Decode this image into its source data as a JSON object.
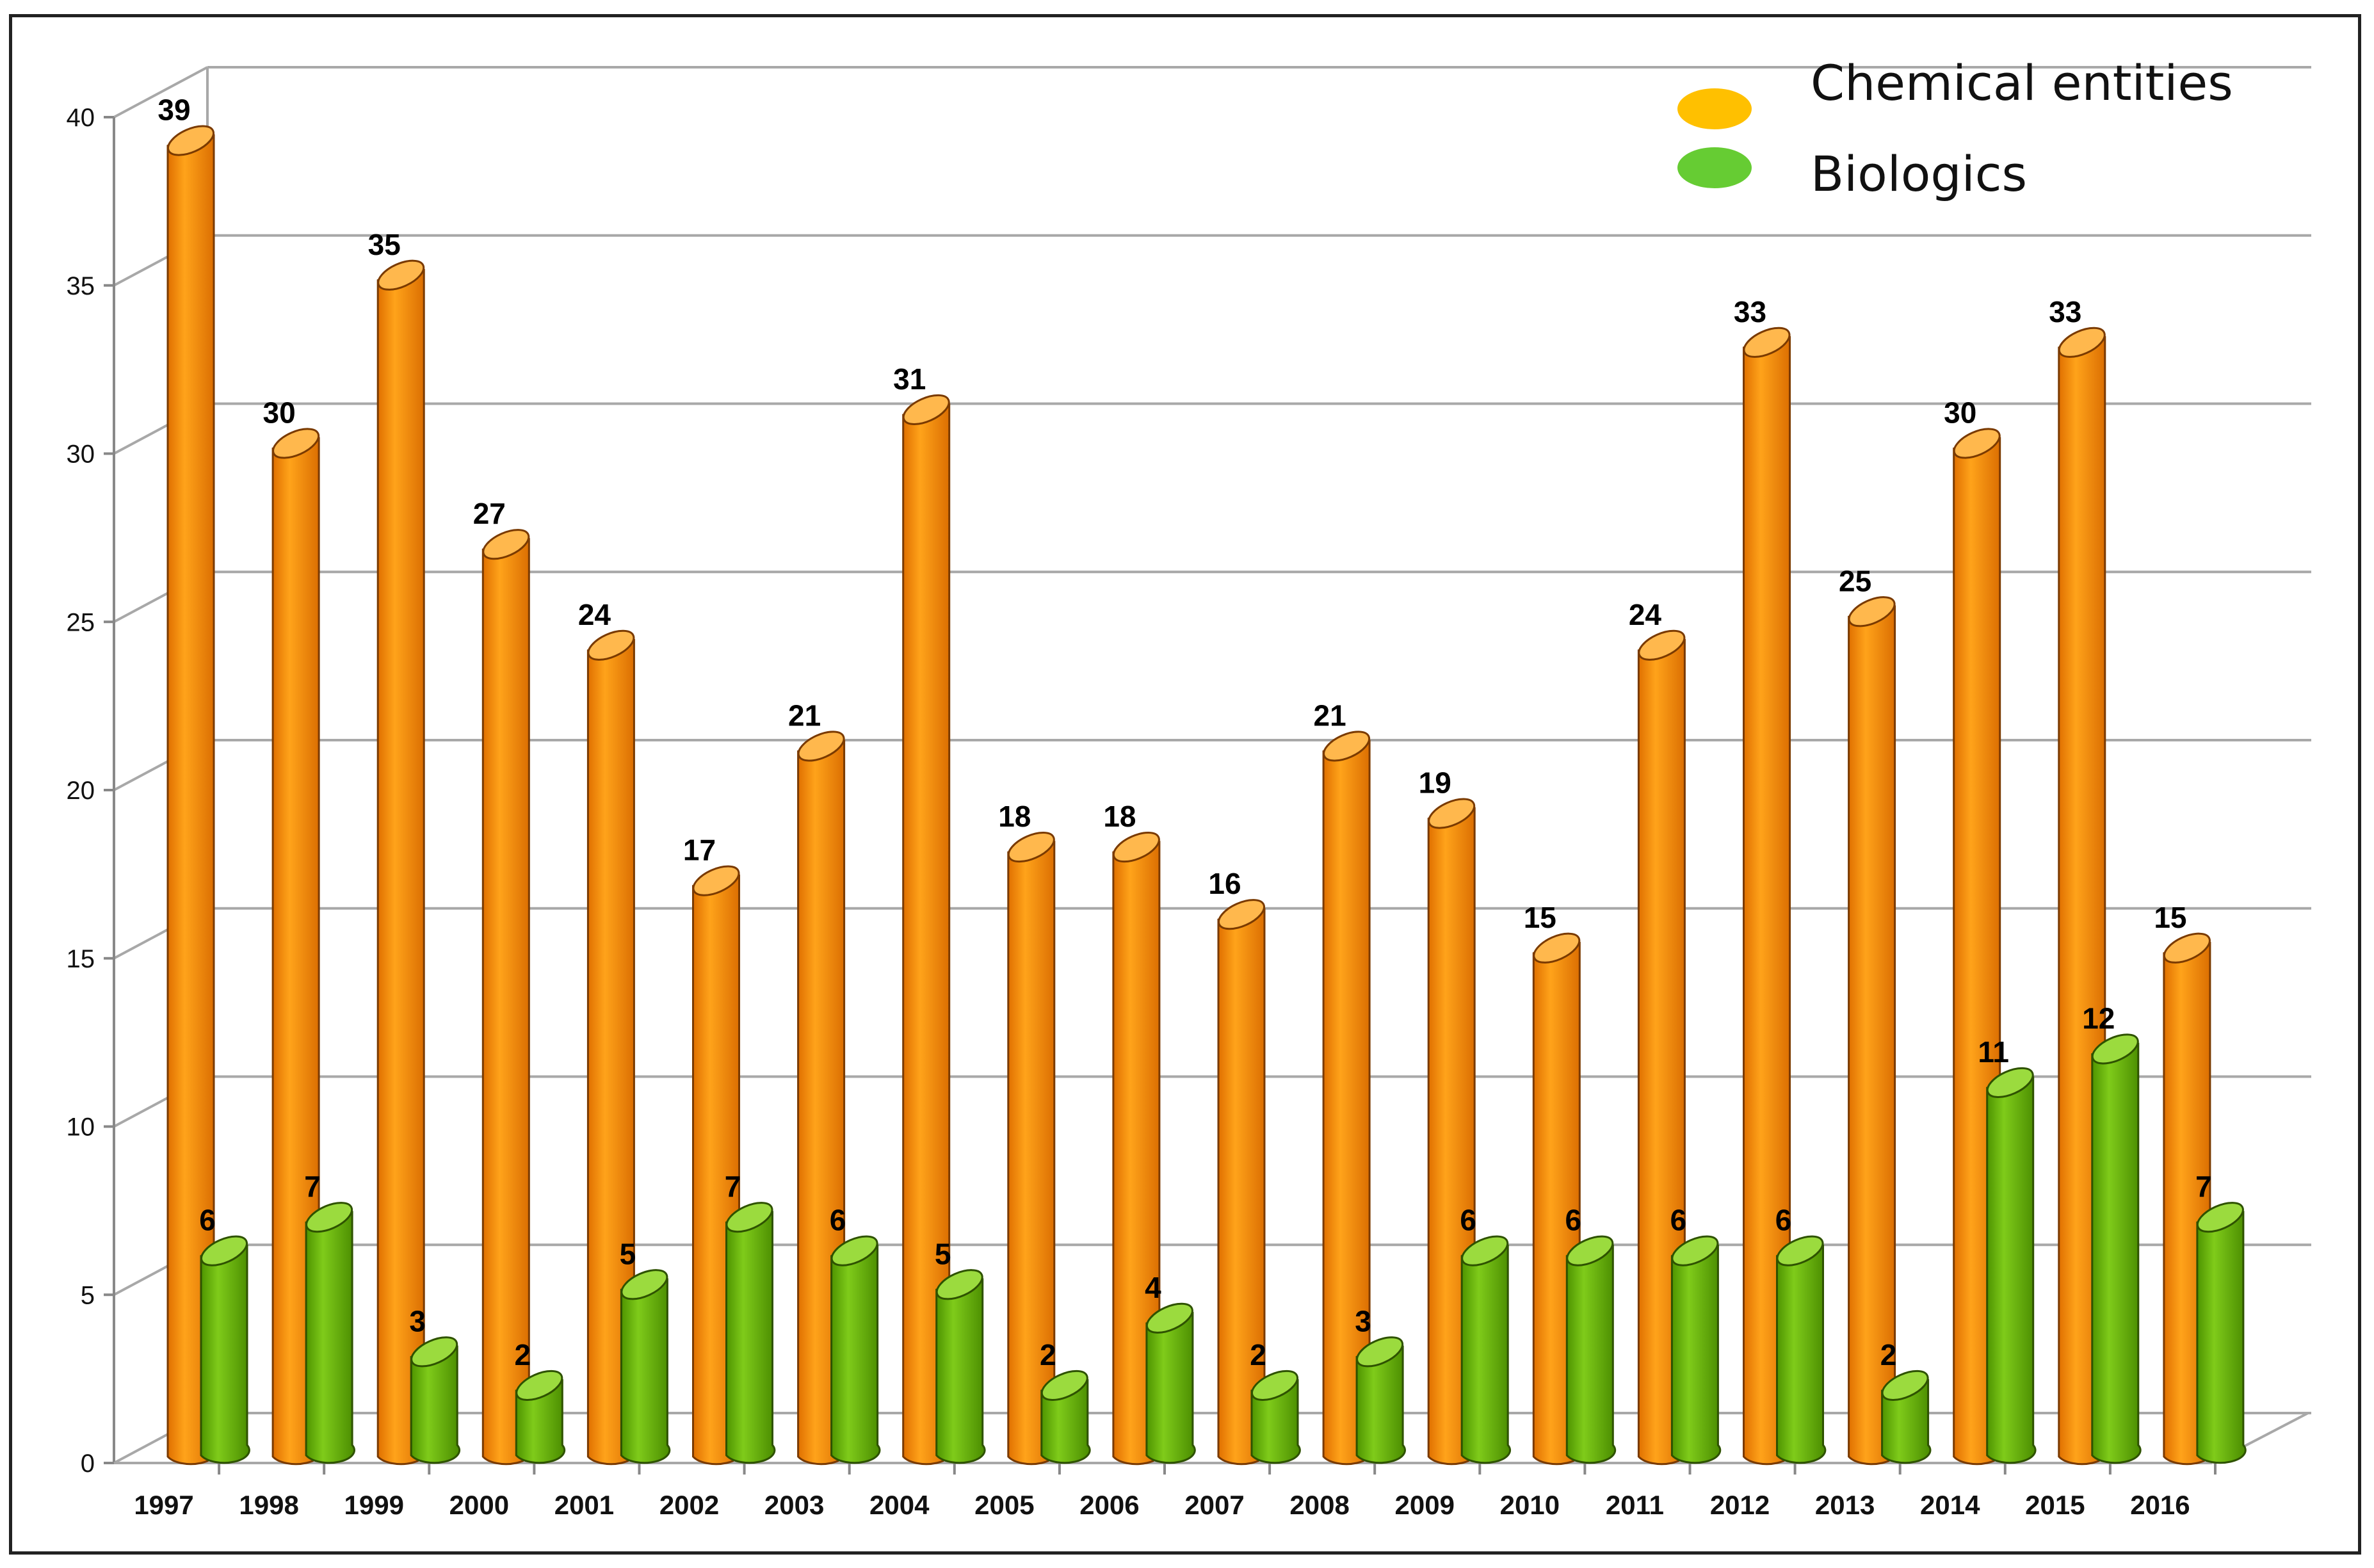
{
  "chart_data": {
    "type": "bar",
    "title": "",
    "xlabel": "",
    "ylabel": "",
    "ylim": [
      0,
      40
    ],
    "yticks": [
      "0",
      "5",
      "10",
      "15",
      "20",
      "25",
      "30",
      "35",
      "40"
    ],
    "grid": true,
    "legend_position": "top-right",
    "categories": [
      "1997",
      "1998",
      "1999",
      "2000",
      "2001",
      "2002",
      "2003",
      "2004",
      "2005",
      "2006",
      "2007",
      "2008",
      "2009",
      "2010",
      "2011",
      "2012",
      "2013",
      "2014",
      "2015",
      "2016"
    ],
    "series": [
      {
        "name": "Chemical entities",
        "color": "#FF8C00",
        "legend_color": "#FFC000",
        "values": [
          39,
          30,
          35,
          27,
          24,
          17,
          21,
          31,
          18,
          18,
          16,
          21,
          19,
          15,
          24,
          33,
          25,
          30,
          33,
          15
        ]
      },
      {
        "name": "Biologics",
        "color": "#66B300",
        "legend_color": "#66CC33",
        "values": [
          6,
          7,
          3,
          2,
          5,
          7,
          6,
          5,
          2,
          4,
          2,
          3,
          6,
          6,
          6,
          6,
          2,
          11,
          12,
          7
        ]
      }
    ]
  }
}
